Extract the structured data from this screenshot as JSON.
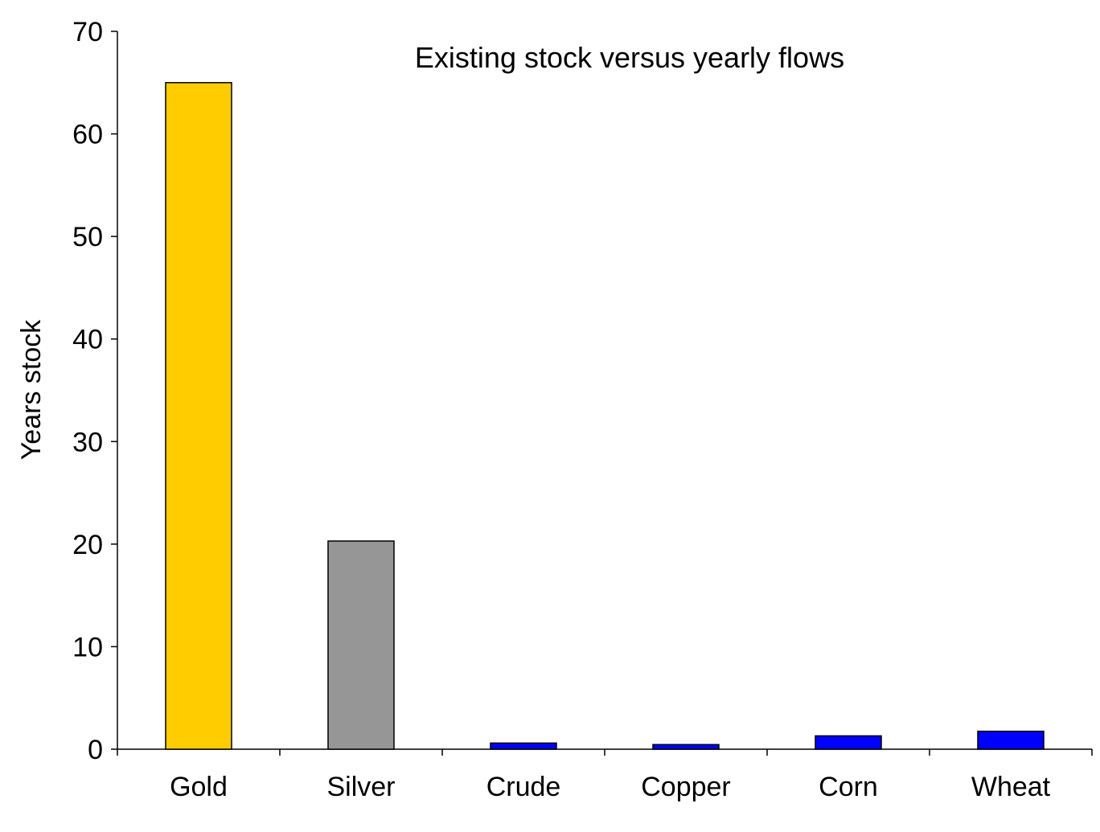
{
  "chart_data": {
    "type": "bar",
    "title": "Existing stock versus yearly flows",
    "xlabel": "",
    "ylabel": "Years stock",
    "categories": [
      "Gold",
      "Silver",
      "Crude",
      "Copper",
      "Corn",
      "Wheat"
    ],
    "values": [
      65,
      20.3,
      0.6,
      0.45,
      1.3,
      1.75
    ],
    "bar_colors": [
      "#FFCC00",
      "#969696",
      "#0000FF",
      "#0000FF",
      "#0000FF",
      "#0000FF"
    ],
    "ylim": [
      0,
      70
    ],
    "yticks": [
      0,
      10,
      20,
      30,
      40,
      50,
      60,
      70
    ],
    "grid": false,
    "legend": "none"
  }
}
